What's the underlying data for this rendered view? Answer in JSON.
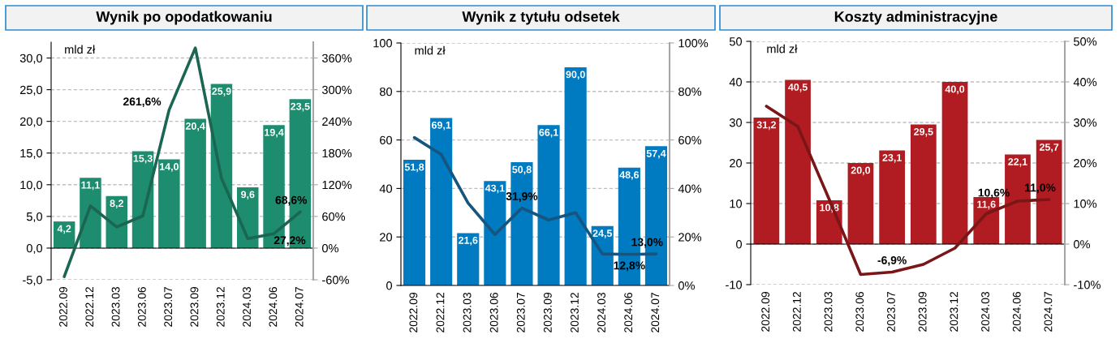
{
  "chart_data": [
    {
      "type": "bar",
      "title": "Wynik po opodatkowaniu",
      "ylabel": "mld zł",
      "categories": [
        "2022.09",
        "2022.12",
        "2023.03",
        "2023.06",
        "2023.07",
        "2023.09",
        "2023.12",
        "2024.03",
        "2024.06",
        "2024.07"
      ],
      "series": [
        {
          "color": "#1e8c6e",
          "values": [
            4.2,
            11.1,
            8.2,
            15.3,
            14.0,
            20.4,
            25.9,
            9.6,
            19.4,
            23.5
          ],
          "value_labels": [
            "4,2",
            "11,1",
            "8,2",
            "15,3",
            "14,0",
            "20,4",
            "25,9",
            "9,6",
            "19,4",
            "23,5"
          ]
        },
        {
          "type": "line",
          "axis": "y2",
          "color": "#1a6652",
          "values": [
            -54,
            80,
            40,
            61,
            261.6,
            379,
            132,
            18,
            27.2,
            68.6
          ],
          "value_labels": [
            null,
            null,
            null,
            null,
            "261,6%",
            null,
            null,
            null,
            "27,2%",
            "68,6%"
          ]
        }
      ],
      "ylim": [
        -5,
        32.5
      ],
      "yticks": [
        {
          "value": -5,
          "label": "-5,0"
        },
        {
          "value": 0,
          "label": "0,0"
        },
        {
          "value": 5,
          "label": "5,0"
        },
        {
          "value": 10,
          "label": "10,0"
        },
        {
          "value": 15,
          "label": "15,0"
        },
        {
          "value": 20,
          "label": "20,0"
        },
        {
          "value": 25,
          "label": "25,0"
        },
        {
          "value": 30,
          "label": "30,0"
        }
      ],
      "y2lim": [
        -60,
        390
      ],
      "y2ticks": [
        {
          "value": -60,
          "label": "-60%"
        },
        {
          "value": 0,
          "label": "0%"
        },
        {
          "value": 60,
          "label": "60%"
        },
        {
          "value": 120,
          "label": "120%"
        },
        {
          "value": 180,
          "label": "180%"
        },
        {
          "value": 240,
          "label": "240%"
        },
        {
          "value": 300,
          "label": "300%"
        },
        {
          "value": 360,
          "label": "360%"
        }
      ],
      "grid": "y"
    },
    {
      "type": "bar",
      "title": "Wynik z tytułu odsetek",
      "ylabel": "mld zł",
      "categories": [
        "2022.09",
        "2022.12",
        "2023.03",
        "2023.06",
        "2023.07",
        "2023.09",
        "2023.12",
        "2024.03",
        "2024.06",
        "2024.07"
      ],
      "series": [
        {
          "color": "#007ac0",
          "values": [
            51.8,
            69.1,
            21.6,
            43.1,
            50.8,
            66.1,
            90.0,
            24.5,
            48.6,
            57.4
          ],
          "value_labels": [
            "51,8",
            "69,1",
            "21,6",
            "43,1",
            "50,8",
            "66,1",
            "90,0",
            "24,5",
            "48,6",
            "57,4"
          ]
        },
        {
          "type": "line",
          "axis": "y2",
          "color": "#16557f",
          "values": [
            61,
            54,
            34,
            21,
            31.9,
            27,
            30,
            13,
            12.8,
            13.0
          ],
          "value_labels": [
            null,
            null,
            null,
            null,
            "31,9%",
            null,
            null,
            null,
            "12,8%",
            "13,0%"
          ]
        }
      ],
      "ylim": [
        0,
        100
      ],
      "yticks": [
        0,
        20,
        40,
        60,
        80,
        100
      ],
      "y2lim": [
        0,
        100
      ],
      "y2ticks": [
        {
          "value": 0,
          "label": "0%"
        },
        {
          "value": 20,
          "label": "20%"
        },
        {
          "value": 40,
          "label": "40%"
        },
        {
          "value": 60,
          "label": "60%"
        },
        {
          "value": 80,
          "label": "80%"
        },
        {
          "value": 100,
          "label": "100%"
        }
      ],
      "grid": "y"
    },
    {
      "type": "bar",
      "title": "Koszty administracyjne",
      "ylabel": "mld zł",
      "categories": [
        "2022.09",
        "2022.12",
        "2023.03",
        "2023.06",
        "2023.07",
        "2023.09",
        "2023.12",
        "2024.03",
        "2024.06",
        "2024.07"
      ],
      "series": [
        {
          "color": "#b01c21",
          "values": [
            31.2,
            40.5,
            10.8,
            20.0,
            23.1,
            29.5,
            40.0,
            11.6,
            22.1,
            25.7
          ],
          "value_labels": [
            "31,2",
            "40,5",
            "10,8",
            "20,0",
            "23,1",
            "29,5",
            "40,0",
            "11,6",
            "22,1",
            "25,7"
          ]
        },
        {
          "type": "line",
          "axis": "y2",
          "color": "#7a1518",
          "values": [
            34,
            29,
            11,
            -7.5,
            -6.9,
            -5,
            -1,
            7.5,
            10.6,
            11.0
          ],
          "value_labels": [
            null,
            null,
            null,
            null,
            "-6,9%",
            null,
            null,
            null,
            "10,6%",
            "11,0%"
          ]
        }
      ],
      "ylim": [
        -10,
        50
      ],
      "yticks": [
        -10,
        0,
        10,
        20,
        30,
        40,
        50
      ],
      "y2lim": [
        -10,
        50
      ],
      "y2ticks": [
        {
          "value": -10,
          "label": "-10%"
        },
        {
          "value": 0,
          "label": "0%"
        },
        {
          "value": 10,
          "label": "10%"
        },
        {
          "value": 20,
          "label": "20%"
        },
        {
          "value": 30,
          "label": "30%"
        },
        {
          "value": 40,
          "label": "40%"
        },
        {
          "value": 50,
          "label": "50%"
        }
      ],
      "grid": "y"
    }
  ]
}
